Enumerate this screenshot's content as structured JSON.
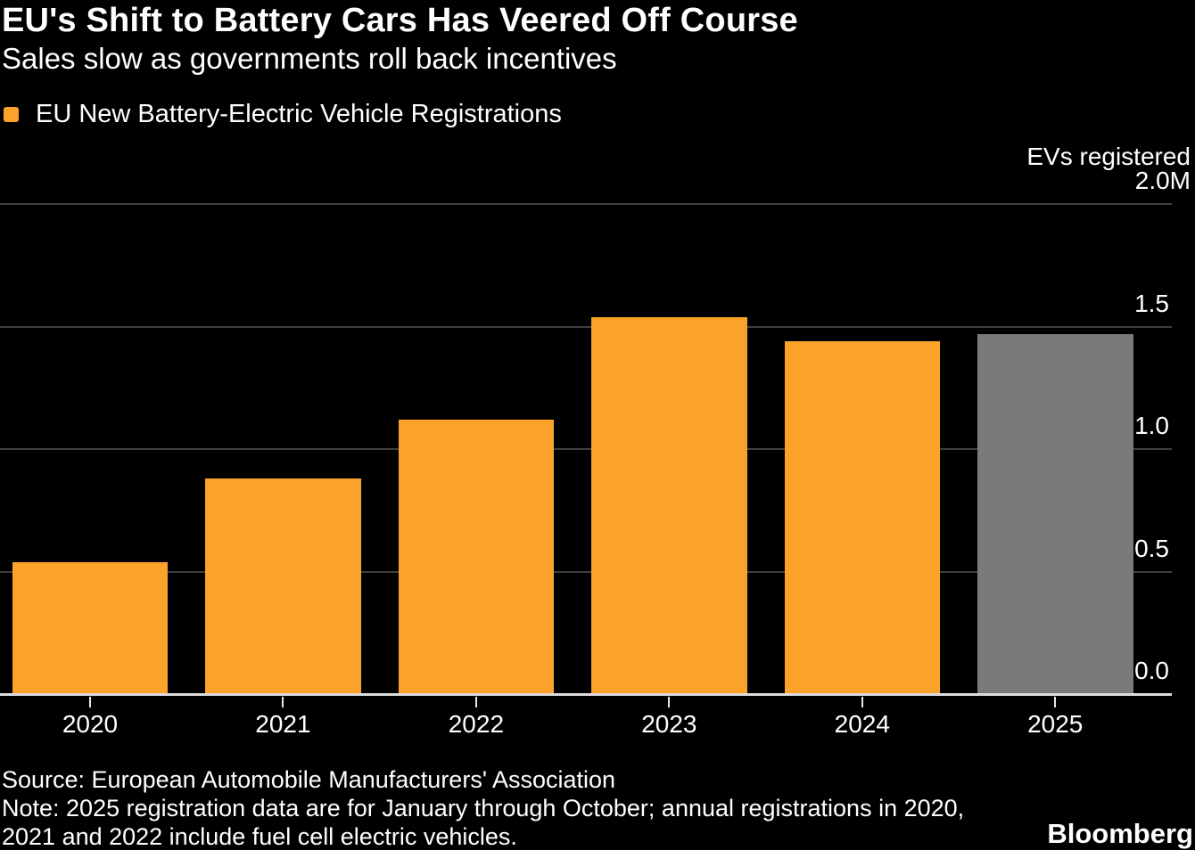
{
  "header": {
    "title": "EU's Shift to Battery Cars Has Veered Off Course",
    "subtitle": "Sales slow as governments roll back incentives"
  },
  "legend": {
    "label": "EU New Battery-Electric Vehicle Registrations"
  },
  "axis": {
    "unit_label": "EVs registered"
  },
  "chart_data": {
    "type": "bar",
    "title": "EU's Shift to Battery Cars Has Veered Off Course",
    "subtitle": "Sales slow as governments roll back incentives",
    "series_name": "EU New Battery-Electric Vehicle Registrations",
    "categories": [
      "2020",
      "2021",
      "2022",
      "2023",
      "2024",
      "2025"
    ],
    "values": [
      0.54,
      0.88,
      1.12,
      1.54,
      1.44,
      1.47
    ],
    "unit": "M",
    "ylabel": "EVs registered",
    "ylim": [
      0,
      2.0
    ],
    "yticks": [
      {
        "value": 2.0,
        "label": "2.0M"
      },
      {
        "value": 1.5,
        "label": "1.5"
      },
      {
        "value": 1.0,
        "label": "1.0"
      },
      {
        "value": 0.5,
        "label": "0.5"
      },
      {
        "value": 0.0,
        "label": "0.0"
      }
    ],
    "grid": "horizontal",
    "legend_position": "top-left",
    "bar_colors": [
      "#faa22a",
      "#faa22a",
      "#faa22a",
      "#faa22a",
      "#faa22a",
      "#7a7a7a"
    ],
    "note": "2025 bar shown in gray: partial-year data (January through October)"
  },
  "colors": {
    "background": "#000000",
    "text": "#ffffff",
    "accent_orange": "#faa22a",
    "partial_year_gray": "#7a7a7a",
    "gridline": "#3e3e3e",
    "axis_line": "#dcdcdc"
  },
  "footer": {
    "source": "Source: European Automobile Manufacturers' Association",
    "note_line1": "Note: 2025 registration data are for January through October; annual registrations in 2020,",
    "note_line2": "2021 and 2022 include fuel cell electric vehicles.",
    "brand": "Bloomberg"
  }
}
